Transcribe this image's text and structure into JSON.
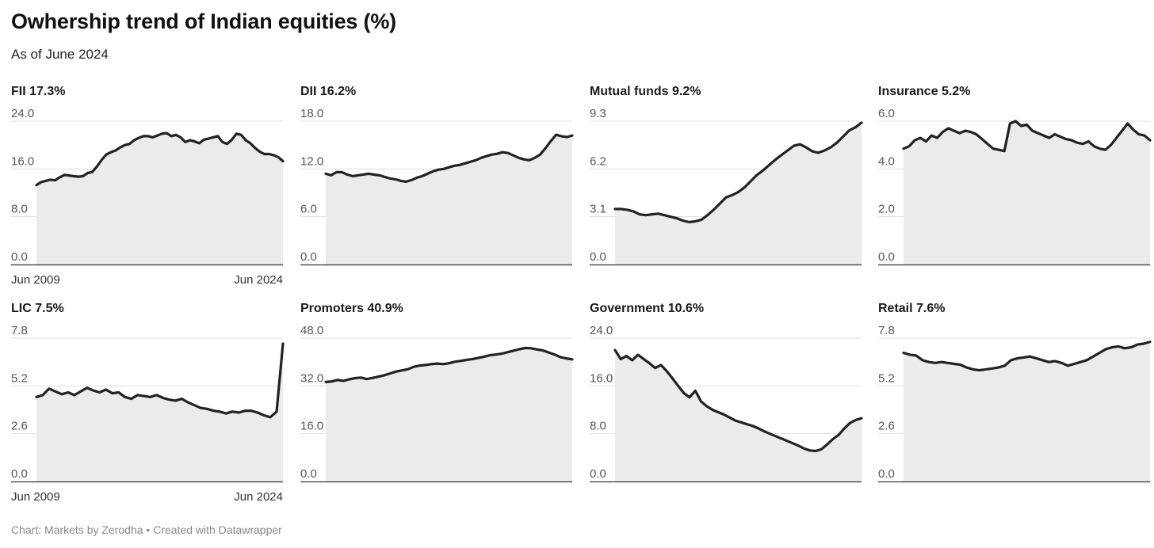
{
  "title": "Owhership trend of Indian equities (%)",
  "subtitle": "As of June 2024",
  "footer": "Chart: Markets by Zerodha • Created with Datawrapper",
  "colors": {
    "line": "#222222",
    "area": "#ebebeb",
    "grid": "#dddddd",
    "baseline": "#333333"
  },
  "chart_data": [
    {
      "type": "area",
      "panel_title": "FII 17.3%",
      "yticks": [
        "0.0",
        "8.0",
        "16.0",
        "24.0"
      ],
      "ylim": [
        0,
        24
      ],
      "xlabels": [
        "Jun 2009",
        "Jun 2024"
      ],
      "values": [
        13.3,
        13.8,
        14.0,
        14.2,
        14.1,
        14.6,
        15.0,
        14.9,
        14.8,
        14.7,
        14.8,
        15.3,
        15.5,
        16.4,
        17.5,
        18.4,
        18.8,
        19.1,
        19.6,
        20.0,
        20.2,
        20.8,
        21.2,
        21.5,
        21.5,
        21.3,
        21.6,
        21.9,
        22.0,
        21.5,
        21.7,
        21.3,
        20.5,
        20.8,
        20.6,
        20.3,
        20.9,
        21.1,
        21.3,
        21.5,
        20.5,
        20.2,
        20.9,
        21.9,
        21.7,
        20.8,
        20.3,
        19.5,
        18.9,
        18.5,
        18.5,
        18.3,
        18.0,
        17.3
      ]
    },
    {
      "type": "area",
      "panel_title": "DII 16.2%",
      "yticks": [
        "0.0",
        "6.0",
        "12.0",
        "18.0"
      ],
      "ylim": [
        0,
        18
      ],
      "xlabels": [],
      "values": [
        11.4,
        11.2,
        11.6,
        11.6,
        11.3,
        11.1,
        11.2,
        11.3,
        11.4,
        11.3,
        11.2,
        11.0,
        10.8,
        10.7,
        10.5,
        10.4,
        10.6,
        10.9,
        11.1,
        11.4,
        11.7,
        11.9,
        12.0,
        12.2,
        12.4,
        12.5,
        12.7,
        12.9,
        13.1,
        13.4,
        13.6,
        13.8,
        13.9,
        14.1,
        14.0,
        13.7,
        13.4,
        13.2,
        13.1,
        13.4,
        13.8,
        14.6,
        15.5,
        16.3,
        16.1,
        16.0,
        16.2
      ]
    },
    {
      "type": "area",
      "panel_title": "Mutual funds 9.2%",
      "yticks": [
        "0.0",
        "3.1",
        "6.2",
        "9.3"
      ],
      "ylim": [
        0,
        9.3
      ],
      "xlabels": [],
      "values": [
        3.6,
        3.6,
        3.55,
        3.45,
        3.25,
        3.2,
        3.25,
        3.3,
        3.2,
        3.1,
        3.0,
        2.85,
        2.75,
        2.8,
        2.9,
        3.2,
        3.55,
        3.95,
        4.35,
        4.5,
        4.7,
        5.0,
        5.4,
        5.8,
        6.1,
        6.45,
        6.8,
        7.1,
        7.4,
        7.7,
        7.8,
        7.6,
        7.35,
        7.25,
        7.4,
        7.6,
        7.9,
        8.3,
        8.7,
        8.9,
        9.2
      ]
    },
    {
      "type": "area",
      "panel_title": "Insurance 5.2%",
      "yticks": [
        "0.0",
        "2.0",
        "4.0",
        "6.0"
      ],
      "ylim": [
        0,
        6
      ],
      "xlabels": [],
      "values": [
        4.85,
        4.95,
        5.2,
        5.3,
        5.15,
        5.4,
        5.3,
        5.55,
        5.7,
        5.6,
        5.5,
        5.6,
        5.55,
        5.45,
        5.25,
        5.05,
        4.85,
        4.8,
        4.75,
        5.9,
        6.0,
        5.8,
        5.85,
        5.6,
        5.5,
        5.4,
        5.3,
        5.45,
        5.35,
        5.25,
        5.2,
        5.1,
        5.05,
        5.15,
        4.95,
        4.85,
        4.8,
        5.0,
        5.3,
        5.6,
        5.9,
        5.65,
        5.45,
        5.4,
        5.2
      ]
    },
    {
      "type": "area",
      "panel_title": "LIC 7.5%",
      "yticks": [
        "0.0",
        "2.6",
        "5.2",
        "7.8"
      ],
      "ylim": [
        0,
        7.8
      ],
      "xlabels": [
        "Jun 2009",
        "Jun 2024"
      ],
      "values": [
        4.6,
        4.7,
        5.05,
        4.9,
        4.75,
        4.85,
        4.7,
        4.9,
        5.1,
        4.95,
        4.85,
        5.0,
        4.8,
        4.85,
        4.6,
        4.5,
        4.7,
        4.65,
        4.6,
        4.7,
        4.55,
        4.45,
        4.4,
        4.5,
        4.3,
        4.15,
        4.0,
        3.95,
        3.85,
        3.8,
        3.7,
        3.8,
        3.75,
        3.85,
        3.85,
        3.75,
        3.6,
        3.5,
        3.8,
        7.5
      ]
    },
    {
      "type": "area",
      "panel_title": "Promoters 40.9%",
      "yticks": [
        "0.0",
        "16.0",
        "32.0",
        "48.0"
      ],
      "ylim": [
        0,
        48
      ],
      "xlabels": [],
      "values": [
        33.3,
        33.5,
        34.0,
        33.7,
        34.2,
        34.6,
        34.8,
        34.3,
        34.7,
        35.1,
        35.6,
        36.2,
        36.8,
        37.2,
        37.6,
        38.4,
        38.8,
        39.0,
        39.3,
        39.5,
        39.3,
        39.6,
        40.1,
        40.4,
        40.7,
        41.0,
        41.4,
        41.8,
        42.3,
        42.5,
        42.8,
        43.3,
        43.8,
        44.3,
        44.7,
        44.6,
        44.2,
        43.9,
        43.2,
        42.5,
        41.6,
        41.2,
        40.9
      ]
    },
    {
      "type": "area",
      "panel_title": "Government 10.6%",
      "yticks": [
        "0.0",
        "8.0",
        "16.0",
        "24.0"
      ],
      "ylim": [
        0,
        24
      ],
      "xlabels": [],
      "values": [
        22.0,
        20.5,
        21.0,
        20.3,
        21.2,
        20.5,
        19.8,
        19.0,
        19.5,
        18.5,
        17.3,
        16.0,
        14.8,
        14.1,
        15.2,
        13.4,
        12.6,
        12.0,
        11.6,
        11.2,
        10.7,
        10.2,
        9.9,
        9.6,
        9.3,
        8.9,
        8.4,
        8.0,
        7.6,
        7.2,
        6.8,
        6.4,
        6.0,
        5.5,
        5.2,
        5.1,
        5.4,
        6.2,
        7.1,
        7.8,
        8.9,
        9.8,
        10.3,
        10.6
      ]
    },
    {
      "type": "area",
      "panel_title": "Retail 7.6%",
      "yticks": [
        "0.0",
        "2.6",
        "5.2",
        "7.8"
      ],
      "ylim": [
        0,
        7.8
      ],
      "xlabels": [],
      "values": [
        7.0,
        6.9,
        6.85,
        6.6,
        6.5,
        6.45,
        6.5,
        6.45,
        6.4,
        6.35,
        6.2,
        6.1,
        6.05,
        6.1,
        6.15,
        6.2,
        6.3,
        6.6,
        6.7,
        6.75,
        6.8,
        6.7,
        6.6,
        6.5,
        6.55,
        6.45,
        6.3,
        6.4,
        6.5,
        6.6,
        6.8,
        7.0,
        7.2,
        7.3,
        7.35,
        7.25,
        7.3,
        7.45,
        7.5,
        7.6
      ]
    }
  ]
}
